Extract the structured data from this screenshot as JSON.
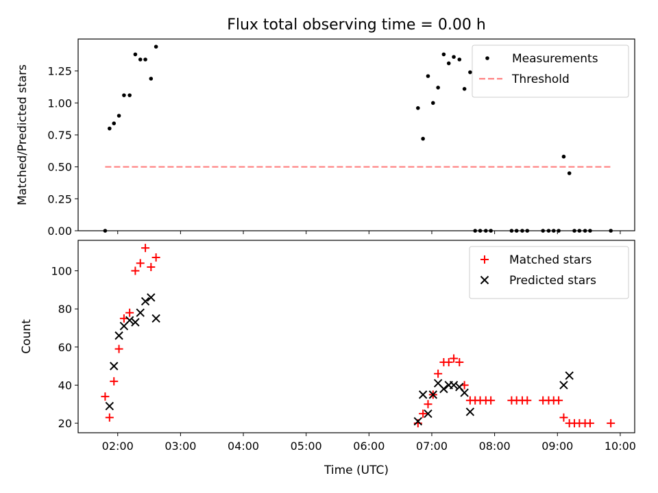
{
  "chart_data": {
    "title": "Flux total observing time = 0.00 h",
    "xlabel": "Time (UTC)",
    "x_unit": "UTC time of day (decimal hours)",
    "xlim": [
      1.37,
      10.23
    ],
    "x_ticks": [
      2,
      3,
      4,
      5,
      6,
      7,
      8,
      9,
      10
    ],
    "x_tick_labels": [
      "02:00",
      "03:00",
      "04:00",
      "05:00",
      "06:00",
      "07:00",
      "08:00",
      "09:00",
      "10:00"
    ],
    "panels": [
      {
        "type": "scatter",
        "ylabel": "Matched/Predicted stars",
        "ylim": [
          0,
          1.5
        ],
        "y_ticks": [
          0,
          0.25,
          0.5,
          0.75,
          1.0,
          1.25
        ],
        "y_tick_labels": [
          "0.00",
          "0.25",
          "0.50",
          "0.75",
          "1.00",
          "1.25"
        ],
        "legend": "top-right",
        "series": [
          {
            "name": "Measurements",
            "kind": "dots",
            "color": "#000000",
            "points": [
              [
                1.8,
                0.0
              ],
              [
                1.87,
                0.8
              ],
              [
                1.94,
                0.84
              ],
              [
                2.02,
                0.9
              ],
              [
                2.1,
                1.06
              ],
              [
                2.19,
                1.06
              ],
              [
                2.28,
                1.38
              ],
              [
                2.36,
                1.34
              ],
              [
                2.44,
                1.34
              ],
              [
                2.53,
                1.19
              ],
              [
                2.61,
                1.44
              ],
              [
                6.78,
                0.96
              ],
              [
                6.86,
                0.72
              ],
              [
                6.94,
                1.21
              ],
              [
                7.02,
                1.0
              ],
              [
                7.1,
                1.12
              ],
              [
                7.19,
                1.38
              ],
              [
                7.27,
                1.31
              ],
              [
                7.35,
                1.36
              ],
              [
                7.44,
                1.34
              ],
              [
                7.52,
                1.11
              ],
              [
                7.61,
                1.24
              ],
              [
                7.69,
                0.0
              ],
              [
                7.77,
                0.0
              ],
              [
                7.86,
                0.0
              ],
              [
                7.94,
                0.0
              ],
              [
                8.27,
                0.0
              ],
              [
                8.35,
                0.0
              ],
              [
                8.44,
                0.0
              ],
              [
                8.52,
                0.0
              ],
              [
                8.77,
                0.0
              ],
              [
                8.86,
                0.0
              ],
              [
                8.94,
                0.0
              ],
              [
                9.02,
                0.0
              ],
              [
                9.1,
                0.58
              ],
              [
                9.19,
                0.45
              ],
              [
                9.27,
                0.0
              ],
              [
                9.35,
                0.0
              ],
              [
                9.44,
                0.0
              ],
              [
                9.52,
                0.0
              ],
              [
                9.85,
                0.0
              ]
            ]
          },
          {
            "name": "Threshold",
            "kind": "dashed-line",
            "color": "#ff7f7f",
            "points": [
              [
                1.8,
                0.5
              ],
              [
                9.85,
                0.5
              ]
            ]
          }
        ]
      },
      {
        "type": "scatter",
        "ylabel": "Count",
        "ylim": [
          15,
          116
        ],
        "y_ticks": [
          20,
          40,
          60,
          80,
          100
        ],
        "y_tick_labels": [
          "20",
          "40",
          "60",
          "80",
          "100"
        ],
        "legend": "top-right",
        "series": [
          {
            "name": "Matched stars",
            "kind": "plus",
            "color": "#ff0000",
            "points": [
              [
                1.8,
                34
              ],
              [
                1.87,
                23
              ],
              [
                1.94,
                42
              ],
              [
                2.02,
                59
              ],
              [
                2.1,
                75
              ],
              [
                2.19,
                78
              ],
              [
                2.28,
                100
              ],
              [
                2.36,
                104
              ],
              [
                2.44,
                112
              ],
              [
                2.53,
                102
              ],
              [
                2.61,
                107
              ],
              [
                6.78,
                20
              ],
              [
                6.86,
                25
              ],
              [
                6.94,
                30
              ],
              [
                7.02,
                35
              ],
              [
                7.1,
                46
              ],
              [
                7.19,
                52
              ],
              [
                7.27,
                52
              ],
              [
                7.35,
                54
              ],
              [
                7.44,
                52
              ],
              [
                7.52,
                40
              ],
              [
                7.61,
                32
              ],
              [
                7.69,
                32
              ],
              [
                7.77,
                32
              ],
              [
                7.86,
                32
              ],
              [
                7.94,
                32
              ],
              [
                8.27,
                32
              ],
              [
                8.35,
                32
              ],
              [
                8.44,
                32
              ],
              [
                8.52,
                32
              ],
              [
                8.77,
                32
              ],
              [
                8.86,
                32
              ],
              [
                8.94,
                32
              ],
              [
                9.02,
                32
              ],
              [
                9.1,
                23
              ],
              [
                9.19,
                20
              ],
              [
                9.27,
                20
              ],
              [
                9.35,
                20
              ],
              [
                9.44,
                20
              ],
              [
                9.52,
                20
              ],
              [
                9.85,
                20
              ]
            ]
          },
          {
            "name": "Predicted stars",
            "kind": "cross",
            "color": "#000000",
            "points": [
              [
                1.87,
                29
              ],
              [
                1.94,
                50
              ],
              [
                2.02,
                66
              ],
              [
                2.1,
                71
              ],
              [
                2.19,
                74
              ],
              [
                2.28,
                73
              ],
              [
                2.36,
                78
              ],
              [
                2.44,
                84
              ],
              [
                2.53,
                86
              ],
              [
                2.61,
                75
              ],
              [
                6.78,
                21
              ],
              [
                6.86,
                35
              ],
              [
                6.94,
                25
              ],
              [
                7.02,
                35
              ],
              [
                7.1,
                41
              ],
              [
                7.19,
                38
              ],
              [
                7.27,
                40
              ],
              [
                7.35,
                40
              ],
              [
                7.44,
                39
              ],
              [
                7.52,
                36
              ],
              [
                7.61,
                26
              ],
              [
                9.1,
                40
              ],
              [
                9.19,
                45
              ]
            ]
          }
        ]
      }
    ]
  }
}
